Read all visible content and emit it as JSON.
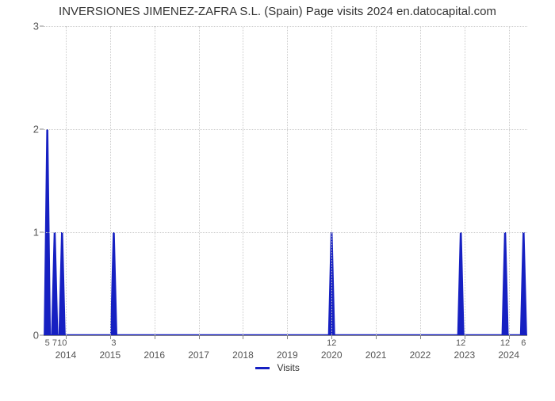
{
  "chart": {
    "type": "line-spike",
    "title": "INVERSIONES JIMENEZ-ZAFRA S.L. (Spain) Page visits 2024 en.datocapital.com",
    "title_fontsize": 15,
    "title_color": "#333333",
    "background_color": "#ffffff",
    "plot_border_color": "#888888",
    "grid_color": "#cccccc",
    "grid_style": "dotted",
    "ylim": [
      0,
      3
    ],
    "yticks": [
      0,
      1,
      2,
      3
    ],
    "ytick_fontsize": 13,
    "ytick_color": "#555555",
    "x_domain_months": [
      0,
      131
    ],
    "year_labels": [
      {
        "year": "2014",
        "month_index": 6
      },
      {
        "year": "2015",
        "month_index": 18
      },
      {
        "year": "2016",
        "month_index": 30
      },
      {
        "year": "2017",
        "month_index": 42
      },
      {
        "year": "2018",
        "month_index": 54
      },
      {
        "year": "2019",
        "month_index": 66
      },
      {
        "year": "2020",
        "month_index": 78
      },
      {
        "year": "2021",
        "month_index": 90
      },
      {
        "year": "2022",
        "month_index": 102
      },
      {
        "year": "2023",
        "month_index": 114
      },
      {
        "year": "2024",
        "month_index": 126
      }
    ],
    "year_label_fontsize": 12,
    "series": {
      "name": "Visits",
      "color": "#1620c2",
      "stroke_width": 2.5,
      "fill_color": "#1620c2",
      "fill_opacity": 1.0,
      "spikes": [
        {
          "x_month": 1,
          "value": 2,
          "bottom_label": "5"
        },
        {
          "x_month": 3,
          "value": 1,
          "bottom_label": "7"
        },
        {
          "x_month": 5,
          "value": 1,
          "bottom_label": "10"
        },
        {
          "x_month": 19,
          "value": 1,
          "bottom_label": "3"
        },
        {
          "x_month": 78,
          "value": 1,
          "bottom_label": "12"
        },
        {
          "x_month": 113,
          "value": 1,
          "bottom_label": "12"
        },
        {
          "x_month": 125,
          "value": 1,
          "bottom_label": "12"
        },
        {
          "x_month": 130,
          "value": 1,
          "bottom_label": "6"
        }
      ]
    },
    "legend": {
      "label": "Visits",
      "swatch_color": "#1620c2"
    }
  }
}
